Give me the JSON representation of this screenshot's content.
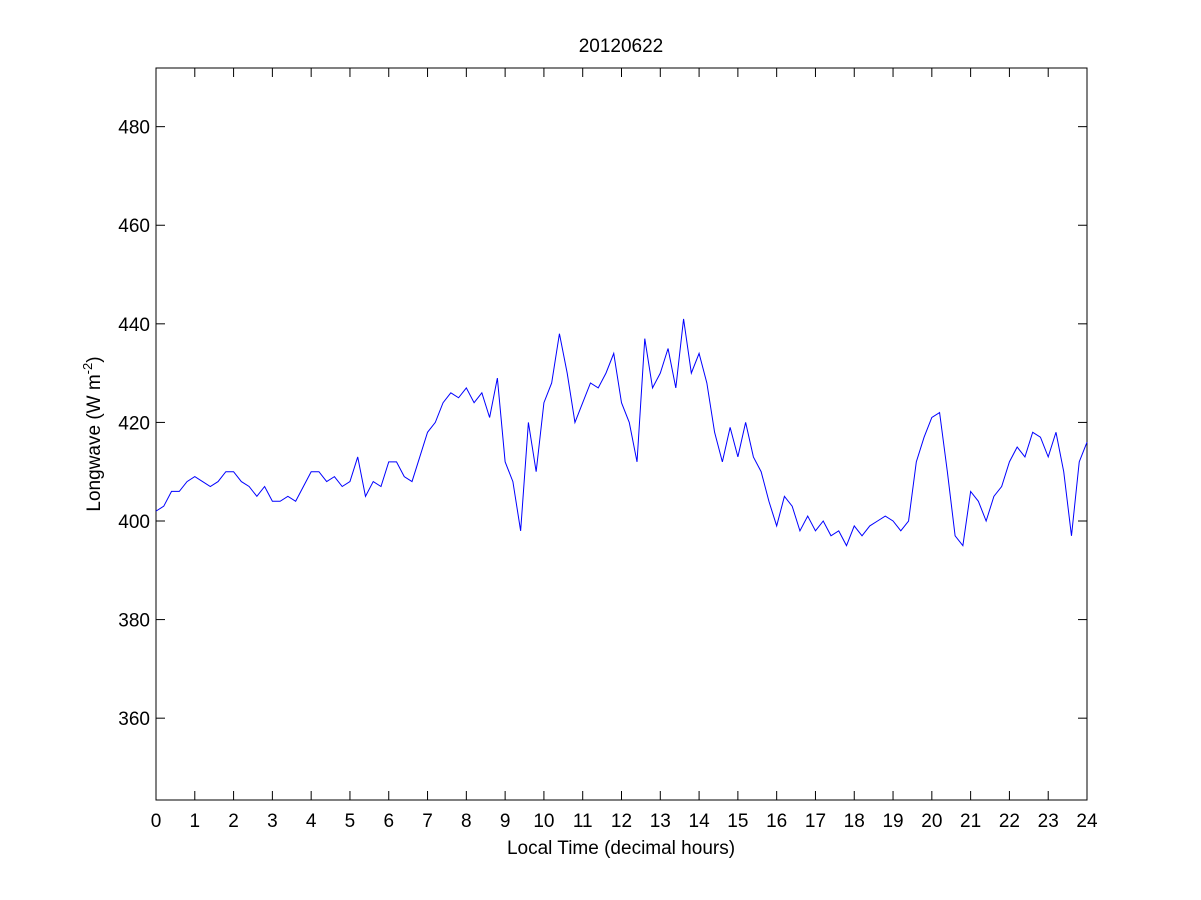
{
  "chart_data": {
    "type": "line",
    "title": "20120622",
    "xlabel": "Local Time (decimal hours)",
    "ylabel": {
      "text": "Longwave (W m",
      "superscript": "-2",
      "suffix": ")"
    },
    "x": [
      0,
      0.2,
      0.4,
      0.6,
      0.8,
      1,
      1.2,
      1.4,
      1.6,
      1.8,
      2,
      2.2,
      2.4,
      2.6,
      2.8,
      3,
      3.2,
      3.4,
      3.6,
      3.8,
      4,
      4.2,
      4.4,
      4.6,
      4.8,
      5,
      5.2,
      5.4,
      5.6,
      5.8,
      6,
      6.2,
      6.4,
      6.6,
      6.8,
      7,
      7.2,
      7.4,
      7.6,
      7.8,
      8,
      8.2,
      8.4,
      8.6,
      8.8,
      9,
      9.2,
      9.4,
      9.6,
      9.8,
      10,
      10.2,
      10.4,
      10.6,
      10.8,
      11,
      11.2,
      11.4,
      11.6,
      11.8,
      12,
      12.2,
      12.4,
      12.6,
      12.8,
      13,
      13.2,
      13.4,
      13.6,
      13.8,
      14,
      14.2,
      14.4,
      14.6,
      14.8,
      15,
      15.2,
      15.4,
      15.6,
      15.8,
      16,
      16.2,
      16.4,
      16.6,
      16.8,
      17,
      17.2,
      17.4,
      17.6,
      17.8,
      18,
      18.2,
      18.4,
      18.6,
      18.8,
      19,
      19.2,
      19.4,
      19.6,
      19.8,
      20,
      20.2,
      20.4,
      20.6,
      20.8,
      21,
      21.2,
      21.4,
      21.6,
      21.8,
      22,
      22.2,
      22.4,
      22.6,
      22.8,
      23,
      23.2,
      23.4,
      23.6,
      23.8,
      24
    ],
    "series": [
      {
        "color": "#0000ff",
        "values": [
          402,
          403,
          406,
          406,
          408,
          409,
          408,
          407,
          408,
          410,
          410,
          408,
          407,
          405,
          407,
          404,
          404,
          405,
          404,
          407,
          410,
          410,
          408,
          409,
          407,
          408,
          413,
          405,
          408,
          407,
          412,
          412,
          409,
          408,
          413,
          418,
          420,
          424,
          426,
          425,
          427,
          424,
          426,
          421,
          429,
          412,
          408,
          398,
          420,
          410,
          424,
          428,
          438,
          430,
          420,
          424,
          428,
          427,
          430,
          434,
          424,
          420,
          412,
          437,
          427,
          430,
          435,
          427,
          441,
          430,
          434,
          428,
          418,
          412,
          419,
          413,
          420,
          413,
          410,
          404,
          399,
          405,
          403,
          398,
          401,
          398,
          400,
          397,
          398,
          395,
          399,
          397,
          399,
          400,
          401,
          400,
          398,
          400,
          412,
          417,
          421,
          422,
          410,
          397,
          395,
          406,
          404,
          400,
          405,
          407,
          412,
          415,
          413,
          418,
          417,
          413,
          418,
          410,
          397,
          412,
          416
        ]
      }
    ],
    "xlim": [
      0,
      24
    ],
    "ylim": [
      343.4,
      491.9
    ],
    "xticks": [
      0,
      1,
      2,
      3,
      4,
      5,
      6,
      7,
      8,
      9,
      10,
      11,
      12,
      13,
      14,
      15,
      16,
      17,
      18,
      19,
      20,
      21,
      22,
      23,
      24
    ],
    "yticks": [
      360,
      380,
      400,
      420,
      440,
      460,
      480
    ]
  }
}
